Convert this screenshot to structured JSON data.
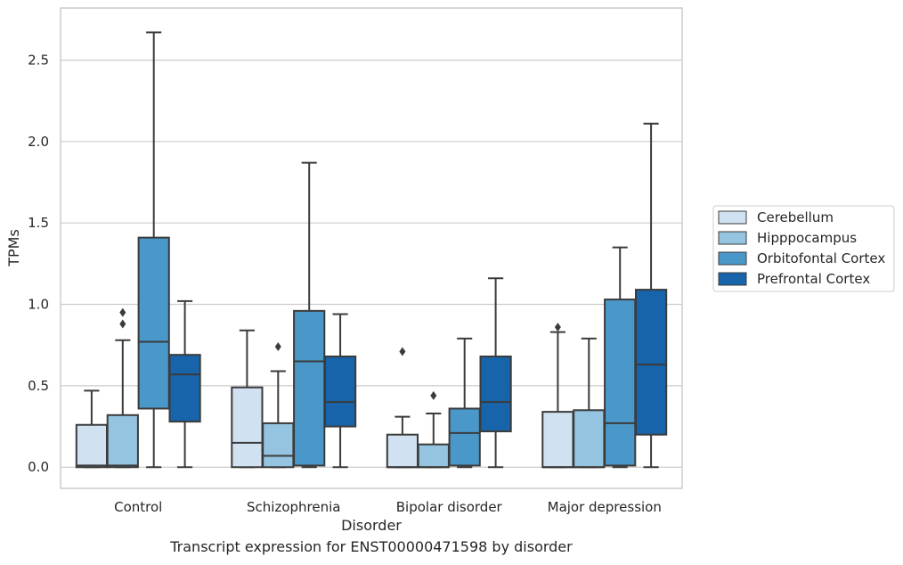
{
  "caption": "Transcript expression for ENST00000471598 by disorder",
  "chart_data": {
    "type": "box",
    "xlabel": "Disorder",
    "ylabel": "TPMs",
    "ylim": [
      -0.13,
      2.82
    ],
    "yticks": [
      0.0,
      0.5,
      1.0,
      1.5,
      2.0,
      2.5
    ],
    "ytick_labels": [
      "0.0",
      "0.5",
      "1.0",
      "1.5",
      "2.0",
      "2.5"
    ],
    "grid": "horizontal",
    "legend_position": "right",
    "categories": [
      "Control",
      "Schizophrenia",
      "Bipolar disorder",
      "Major depression"
    ],
    "series": [
      {
        "name": "Cerebellum",
        "color": "#d0e1f2",
        "boxes": [
          {
            "whislo": 0.0,
            "q1": 0.0,
            "med": 0.01,
            "q3": 0.26,
            "whishi": 0.47,
            "fliers": []
          },
          {
            "whislo": 0.0,
            "q1": 0.0,
            "med": 0.15,
            "q3": 0.49,
            "whishi": 0.84,
            "fliers": []
          },
          {
            "whislo": 0.0,
            "q1": 0.0,
            "med": 0.0,
            "q3": 0.2,
            "whishi": 0.31,
            "fliers": [
              0.71
            ]
          },
          {
            "whislo": 0.0,
            "q1": 0.0,
            "med": 0.0,
            "q3": 0.34,
            "whishi": 0.83,
            "fliers": [
              0.86
            ]
          }
        ]
      },
      {
        "name": "Hipppocampus",
        "color": "#94c4df",
        "boxes": [
          {
            "whislo": 0.0,
            "q1": 0.0,
            "med": 0.01,
            "q3": 0.32,
            "whishi": 0.78,
            "fliers": [
              0.88,
              0.95
            ]
          },
          {
            "whislo": 0.0,
            "q1": 0.0,
            "med": 0.07,
            "q3": 0.27,
            "whishi": 0.59,
            "fliers": [
              0.74
            ]
          },
          {
            "whislo": 0.0,
            "q1": 0.0,
            "med": 0.0,
            "q3": 0.14,
            "whishi": 0.33,
            "fliers": [
              0.44
            ]
          },
          {
            "whislo": 0.0,
            "q1": 0.0,
            "med": 0.0,
            "q3": 0.35,
            "whishi": 0.79,
            "fliers": []
          }
        ]
      },
      {
        "name": "Orbitofontal Cortex",
        "color": "#4a98c9",
        "boxes": [
          {
            "whislo": 0.0,
            "q1": 0.36,
            "med": 0.77,
            "q3": 1.41,
            "whishi": 2.67,
            "fliers": []
          },
          {
            "whislo": 0.0,
            "q1": 0.01,
            "med": 0.65,
            "q3": 0.96,
            "whishi": 1.87,
            "fliers": []
          },
          {
            "whislo": 0.0,
            "q1": 0.01,
            "med": 0.21,
            "q3": 0.36,
            "whishi": 0.79,
            "fliers": []
          },
          {
            "whislo": 0.0,
            "q1": 0.01,
            "med": 0.27,
            "q3": 1.03,
            "whishi": 1.35,
            "fliers": []
          }
        ]
      },
      {
        "name": "Prefrontal Cortex",
        "color": "#1764ab",
        "boxes": [
          {
            "whislo": 0.0,
            "q1": 0.28,
            "med": 0.57,
            "q3": 0.69,
            "whishi": 1.02,
            "fliers": []
          },
          {
            "whislo": 0.0,
            "q1": 0.25,
            "med": 0.4,
            "q3": 0.68,
            "whishi": 0.94,
            "fliers": []
          },
          {
            "whislo": 0.0,
            "q1": 0.22,
            "med": 0.4,
            "q3": 0.68,
            "whishi": 1.16,
            "fliers": []
          },
          {
            "whislo": 0.0,
            "q1": 0.2,
            "med": 0.63,
            "q3": 1.09,
            "whishi": 2.11,
            "fliers": []
          }
        ]
      }
    ]
  }
}
